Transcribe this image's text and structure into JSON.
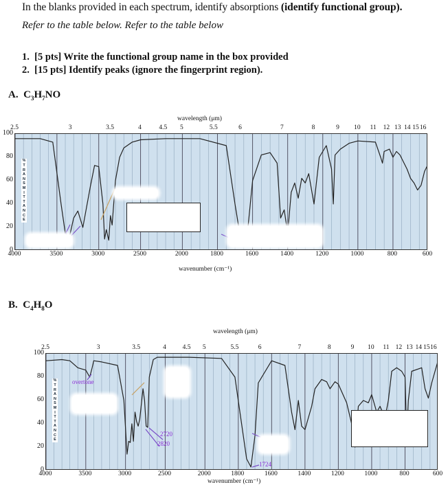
{
  "instructions": {
    "line1_plain": "In the blanks provided in each spectrum, identify absorptions ",
    "line1_bold": "(identify functional group).",
    "line2": "Refer to the table below. Refer to the table below"
  },
  "questions": [
    {
      "num": "1.",
      "text": "[5 pts] Write the functional group name in the box provided"
    },
    {
      "num": "2.",
      "text": "[15 pts] Identify peaks (ignore the fingerprint region)."
    }
  ],
  "section_a": {
    "label": "A.",
    "formula_parts": [
      "C",
      "3",
      "H",
      "7",
      "NO"
    ]
  },
  "section_b": {
    "label": "B.",
    "formula_parts": [
      "C",
      "4",
      "H",
      "8",
      "O"
    ]
  },
  "axis": {
    "wavelength_title": "wavelength (μm)",
    "wavenumber_title": "wavenumber (cm⁻¹)",
    "y_label_letters": [
      "%",
      "T",
      "R",
      "A",
      "N",
      "S",
      "M",
      "I",
      "T",
      "T",
      "A",
      "N",
      "C",
      "E"
    ],
    "y_ticks": [
      "100",
      "80",
      "60",
      "40",
      "20",
      "0"
    ],
    "x_ticks": [
      "4000",
      "3500",
      "3000",
      "2500",
      "2000",
      "1800",
      "1600",
      "1400",
      "1200",
      "1000",
      "800",
      "600"
    ],
    "w_ticks": [
      "2.5",
      "3",
      "3.5",
      "4",
      "4.5",
      "5",
      "5.5",
      "6",
      "7",
      "8",
      "9",
      "10",
      "11",
      "12",
      "13",
      "14",
      "15",
      "16"
    ]
  },
  "annotations_b": {
    "overtone": "overtone",
    "a2720": "2720",
    "a2820": "2820",
    "a1724": "1724"
  },
  "colors": {
    "plot_bg": "#cfe0ee",
    "annot": "#8a2bd6",
    "pointer_purple": "#7a4fc8",
    "pointer_tan": "#c8a060",
    "line": "#222222"
  },
  "chart_data": [
    {
      "type": "line",
      "title": "A. C3H7NO IR spectrum",
      "xlabel": "wavenumber (cm-1)",
      "x2label": "wavelength (um)",
      "ylabel": "% TRANSMITTANCE",
      "xlim": [
        4000,
        600
      ],
      "ylim": [
        0,
        100
      ],
      "x_ticks": [
        4000,
        3500,
        3000,
        2500,
        2000,
        1800,
        1600,
        1400,
        1200,
        1000,
        800,
        600
      ],
      "grid": true,
      "series": [
        {
          "name": "transmittance",
          "x": [
            4000,
            3700,
            3550,
            3450,
            3400,
            3350,
            3300,
            3250,
            3190,
            3100,
            3050,
            3000,
            2950,
            2930,
            2910,
            2880,
            2860,
            2840,
            2800,
            2750,
            2700,
            2600,
            2500,
            2200,
            1900,
            1750,
            1700,
            1670,
            1650,
            1630,
            1600,
            1550,
            1500,
            1460,
            1440,
            1420,
            1400,
            1380,
            1360,
            1340,
            1320,
            1300,
            1280,
            1250,
            1220,
            1180,
            1150,
            1140,
            1130,
            1100,
            1050,
            1000,
            900,
            870,
            860,
            850,
            820,
            800,
            780,
            760,
            720,
            700,
            680,
            660,
            640,
            620,
            600
          ],
          "y": [
            96,
            96,
            93,
            40,
            15,
            12,
            28,
            34,
            20,
            55,
            73,
            72,
            40,
            10,
            18,
            9,
            30,
            22,
            60,
            80,
            88,
            93,
            95,
            96,
            96,
            90,
            40,
            12,
            10,
            14,
            60,
            82,
            84,
            75,
            28,
            35,
            15,
            50,
            58,
            45,
            62,
            58,
            66,
            40,
            80,
            90,
            70,
            40,
            82,
            87,
            92,
            94,
            93,
            80,
            75,
            85,
            87,
            80,
            85,
            82,
            70,
            62,
            58,
            52,
            56,
            68,
            74
          ]
        }
      ]
    },
    {
      "type": "line",
      "title": "B. C4H8O IR spectrum",
      "xlabel": "wavenumber (cm-1)",
      "x2label": "wavelength (um)",
      "ylabel": "% TRANSMITTANCE",
      "xlim": [
        4000,
        600
      ],
      "ylim": [
        0,
        100
      ],
      "x_ticks": [
        4000,
        3500,
        3000,
        2500,
        2000,
        1800,
        1600,
        1400,
        1200,
        1000,
        800,
        600
      ],
      "grid": true,
      "annotations": [
        {
          "text": "overtone",
          "x": 3420,
          "y": 80
        },
        {
          "text": "2720",
          "x": 2720,
          "y": 38
        },
        {
          "text": "2820",
          "x": 2820,
          "y": 40
        },
        {
          "text": "1724",
          "x": 1724,
          "y": 2
        }
      ],
      "series": [
        {
          "name": "transmittance",
          "x": [
            4000,
            3800,
            3700,
            3600,
            3500,
            3450,
            3420,
            3400,
            3300,
            3100,
            3020,
            2980,
            2960,
            2940,
            2920,
            2900,
            2880,
            2860,
            2840,
            2820,
            2780,
            2760,
            2740,
            2720,
            2700,
            2650,
            2600,
            2500,
            2200,
            1900,
            1820,
            1780,
            1750,
            1724,
            1700,
            1680,
            1600,
            1520,
            1480,
            1460,
            1440,
            1420,
            1400,
            1380,
            1360,
            1340,
            1300,
            1270,
            1250,
            1220,
            1200,
            1150,
            1120,
            1100,
            1080,
            1050,
            1020,
            1000,
            970,
            950,
            920,
            900,
            880,
            850,
            820,
            800,
            790,
            780,
            760,
            700,
            680,
            660,
            640,
            620,
            600
          ],
          "y": [
            94,
            95,
            94,
            88,
            86,
            80,
            88,
            94,
            93,
            90,
            60,
            14,
            25,
            24,
            40,
            25,
            50,
            42,
            38,
            44,
            70,
            60,
            38,
            37,
            80,
            95,
            97,
            97,
            97,
            96,
            80,
            40,
            10,
            3,
            30,
            75,
            94,
            90,
            50,
            35,
            60,
            38,
            35,
            45,
            55,
            70,
            78,
            76,
            70,
            76,
            74,
            58,
            40,
            20,
            55,
            60,
            58,
            65,
            50,
            55,
            45,
            60,
            85,
            88,
            85,
            80,
            30,
            60,
            85,
            88,
            70,
            62,
            75,
            85,
            95
          ]
        }
      ]
    }
  ]
}
